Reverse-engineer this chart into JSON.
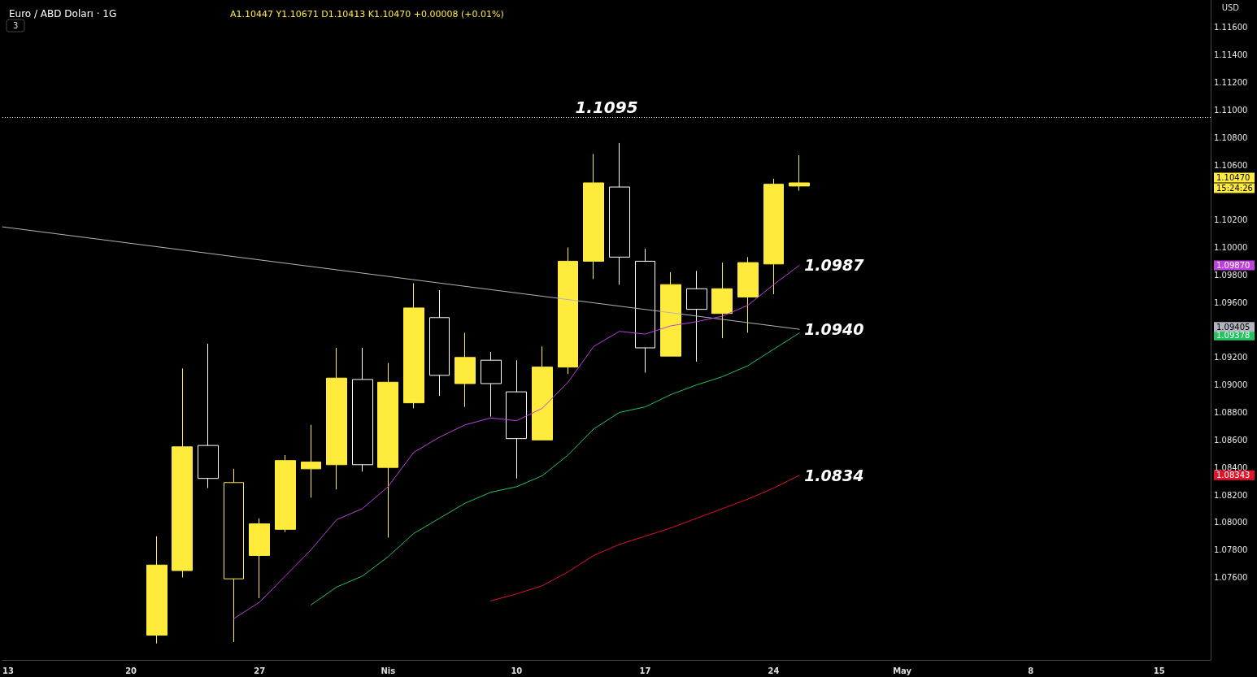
{
  "chart_data": {
    "type": "candlestick",
    "title": "Euro / ABD Doları · 1G",
    "subtitle": "A1.10447 Y1.10671 D1.10413 K1.10470 +0.00008 (+0.01%)",
    "ylabel": "USD",
    "categories": [
      "13",
      null,
      null,
      null,
      null,
      "20",
      null,
      null,
      null,
      null,
      "27",
      null,
      null,
      null,
      null,
      "Nis",
      null,
      null,
      null,
      null,
      "10",
      null,
      null,
      null,
      null,
      "17",
      null,
      null,
      null,
      null,
      "24",
      null,
      null,
      null,
      null,
      "May",
      null,
      null,
      null,
      null,
      "8",
      null,
      null,
      null,
      null,
      "15",
      null,
      null
    ],
    "ohlc": [
      null,
      null,
      null,
      null,
      null,
      null,
      [
        1.0718,
        1.079,
        1.0712,
        1.0769
      ],
      [
        1.0765,
        1.0912,
        1.076,
        1.0855
      ],
      [
        1.0856,
        1.093,
        1.0825,
        1.0832
      ],
      [
        1.0829,
        1.0839,
        1.0713,
        1.0759
      ],
      [
        1.0776,
        1.0803,
        1.0745,
        1.0799
      ],
      [
        1.0795,
        1.0849,
        1.0793,
        1.0845
      ],
      [
        1.0839,
        1.0871,
        1.0818,
        1.0844
      ],
      [
        1.0842,
        1.0927,
        1.0824,
        1.0905
      ],
      [
        1.0904,
        1.0927,
        1.0837,
        1.0842
      ],
      [
        1.084,
        1.0916,
        1.0789,
        1.0902
      ],
      [
        1.0887,
        1.0974,
        1.0883,
        1.0956
      ],
      [
        1.0949,
        1.0969,
        1.0892,
        1.0907
      ],
      [
        1.0901,
        1.0938,
        1.0884,
        1.092
      ],
      [
        1.0918,
        1.0924,
        1.0877,
        1.0901
      ],
      [
        1.0895,
        1.0918,
        1.0832,
        1.0861
      ],
      [
        1.086,
        1.0928,
        1.086,
        1.0913
      ],
      [
        1.0913,
        1.1,
        1.0908,
        1.099
      ],
      [
        1.099,
        1.1068,
        1.0977,
        1.1047
      ],
      [
        1.1044,
        1.1076,
        1.0973,
        1.0993
      ],
      [
        1.099,
        1.0999,
        1.0909,
        1.0927
      ],
      [
        1.0921,
        1.0982,
        1.0921,
        1.0973
      ],
      [
        1.097,
        1.0983,
        1.0917,
        1.0955
      ],
      [
        1.0952,
        1.0989,
        1.0934,
        1.097
      ],
      [
        1.0964,
        1.0993,
        1.0938,
        1.0989
      ],
      [
        1.0988,
        1.105,
        1.0966,
        1.1046
      ],
      [
        1.10447,
        1.10671,
        1.10413,
        1.1047
      ],
      null,
      null,
      null,
      null,
      null,
      null,
      null,
      null,
      null,
      null,
      null,
      null,
      null,
      null,
      null,
      null
    ],
    "colors": [
      null,
      null,
      null,
      null,
      null,
      null,
      "#ffeb3b",
      "#ffeb3b",
      "#ffffff",
      "#ffeb3b",
      "#ffeb3b",
      "#ffeb3b",
      "#ffeb3b",
      "#ffeb3b",
      "#ffffff",
      "#ffeb3b",
      "#ffeb3b",
      "#ffffff",
      "#ffeb3b",
      "#ffffff",
      "#ffffff",
      "#ffeb3b",
      "#ffeb3b",
      "#ffeb3b",
      "#ffffff",
      "#ffffff",
      "#ffeb3b",
      "#ffffff",
      "#ffeb3b",
      "#ffeb3b",
      "#ffeb3b",
      "#ffeb3b",
      null,
      null,
      null,
      null,
      null,
      null,
      null,
      null,
      null,
      null,
      null,
      null,
      null,
      null,
      null,
      null
    ],
    "series": [
      {
        "type": "line",
        "color": "#b2b5be",
        "values": [
          1.1015,
          null,
          null,
          null,
          null,
          null,
          null,
          null,
          null,
          null,
          null,
          null,
          null,
          null,
          null,
          null,
          null,
          null,
          null,
          null,
          null,
          null,
          null,
          null,
          null,
          null,
          null,
          null,
          null,
          null,
          null,
          1.09405,
          null,
          null,
          null,
          null,
          null,
          null,
          null,
          null,
          null,
          null,
          null,
          null,
          null,
          null,
          null,
          null
        ],
        "value_labels": [
          null,
          null,
          null,
          null,
          null,
          null,
          null,
          null,
          null,
          null,
          null,
          null,
          null,
          null,
          null,
          null,
          null,
          null,
          null,
          null,
          null,
          null,
          null,
          null,
          null,
          null,
          null,
          null,
          null,
          null,
          null,
          "1.0940",
          null,
          null,
          null,
          null,
          null,
          null,
          null,
          null,
          null,
          null,
          null,
          null,
          null,
          null,
          null,
          null
        ]
      },
      {
        "type": "line",
        "color": "#c040e0",
        "values": [
          null,
          null,
          null,
          null,
          null,
          null,
          null,
          null,
          null,
          1.073,
          1.0742,
          1.0761,
          1.078,
          1.0802,
          1.081,
          1.0826,
          1.0851,
          1.0862,
          1.0871,
          1.0876,
          1.0874,
          1.0883,
          1.0902,
          1.0928,
          1.0939,
          1.0937,
          1.0943,
          1.0946,
          1.095,
          1.0958,
          1.0973,
          1.0987,
          null,
          null,
          null,
          null,
          null,
          null,
          null,
          null,
          null,
          null,
          null,
          null,
          null,
          null,
          null,
          null
        ],
        "value_labels": [
          null,
          null,
          null,
          null,
          null,
          null,
          null,
          null,
          null,
          null,
          null,
          null,
          null,
          null,
          null,
          null,
          null,
          null,
          null,
          null,
          null,
          null,
          null,
          null,
          null,
          null,
          null,
          null,
          null,
          null,
          null,
          "1.0987",
          null,
          null,
          null,
          null,
          null,
          null,
          null,
          null,
          null,
          null,
          null,
          null,
          null,
          null,
          null,
          null
        ]
      },
      {
        "type": "line",
        "color": "#22c55e",
        "values": [
          null,
          null,
          null,
          null,
          null,
          null,
          null,
          null,
          null,
          null,
          null,
          null,
          1.074,
          1.0753,
          1.0761,
          1.0775,
          1.0792,
          1.0803,
          1.0814,
          1.0822,
          1.0826,
          1.0834,
          1.0849,
          1.0868,
          1.088,
          1.0884,
          1.0893,
          1.09,
          1.0906,
          1.0914,
          1.0926,
          1.09378,
          null,
          null,
          null,
          null,
          null,
          null,
          null,
          null,
          null,
          null,
          null,
          null,
          null,
          null,
          null,
          null
        ]
      },
      {
        "type": "line",
        "color": "#e0142a",
        "values": [
          null,
          null,
          null,
          null,
          null,
          null,
          null,
          null,
          null,
          null,
          null,
          null,
          null,
          null,
          null,
          null,
          null,
          null,
          null,
          1.0743,
          1.0748,
          1.0754,
          1.0764,
          1.0776,
          1.0784,
          1.079,
          1.0796,
          1.0803,
          1.081,
          1.0817,
          1.0825,
          1.08343,
          null,
          null,
          null,
          null,
          null,
          null,
          null,
          null,
          null,
          null,
          null,
          null,
          null,
          null,
          null,
          null
        ],
        "value_labels": [
          null,
          null,
          null,
          null,
          null,
          null,
          null,
          null,
          null,
          null,
          null,
          null,
          null,
          null,
          null,
          null,
          null,
          null,
          null,
          null,
          null,
          null,
          null,
          null,
          null,
          null,
          null,
          null,
          null,
          null,
          null,
          "1.0834",
          null,
          null,
          null,
          null,
          null,
          null,
          null,
          null,
          null,
          null,
          null,
          null,
          null,
          null,
          null,
          null
        ]
      }
    ],
    "ref_lines": [
      {
        "axis": "y",
        "value": 1.1095,
        "label": "1.1095",
        "color": "#ffffff",
        "line_style": "dotted"
      }
    ],
    "annotations": [
      "3"
    ],
    "ylim": [
      1.07,
      1.118
    ],
    "yticks": [
      {
        "value": 1.076,
        "label": "1.07600"
      },
      {
        "value": 1.078,
        "label": "1.07800"
      },
      {
        "value": 1.08,
        "label": "1.08000"
      },
      {
        "value": 1.082,
        "label": "1.08200"
      },
      {
        "value": 1.084,
        "label": "1.08400"
      },
      {
        "value": 1.086,
        "label": "1.08600"
      },
      {
        "value": 1.088,
        "label": "1.08800"
      },
      {
        "value": 1.09,
        "label": "1.09000"
      },
      {
        "value": 1.092,
        "label": "1.09200"
      },
      {
        "value": 1.096,
        "label": "1.09600"
      },
      {
        "value": 1.098,
        "label": "1.09800"
      },
      {
        "value": 1.1,
        "label": "1.10000"
      },
      {
        "value": 1.102,
        "label": "1.10200"
      },
      {
        "value": 1.106,
        "label": "1.10600"
      },
      {
        "value": 1.108,
        "label": "1.10800"
      },
      {
        "value": 1.11,
        "label": "1.11000"
      },
      {
        "value": 1.112,
        "label": "1.11200"
      },
      {
        "value": 1.114,
        "label": "1.11400"
      },
      {
        "value": 1.116,
        "label": "1.11600"
      },
      1.08343,
      1.09378,
      1.09405,
      {
        "value": 1.0987,
        "label": "1.09870"
      },
      {
        "value": 1.1047,
        "label": "1.10470\n15:24:26"
      }
    ],
    "grid": false,
    "marker": "none",
    "line_style": "solid"
  }
}
